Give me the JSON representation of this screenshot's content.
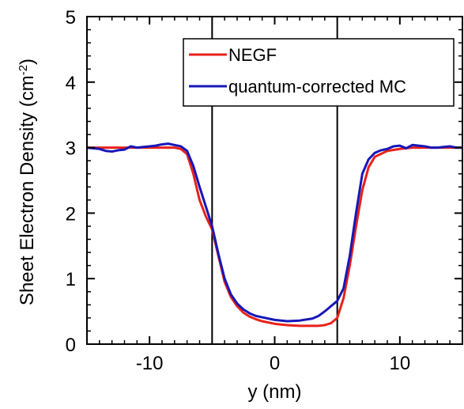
{
  "chart_data": {
    "type": "line",
    "xlabel": "y (nm)",
    "ylabel_main": "Sheet Electron Density (cm",
    "ylabel_sup": "-2",
    "ylabel_close": ")",
    "xlim": [
      -15,
      15
    ],
    "ylim": [
      0,
      5
    ],
    "x_ticks": [
      -10,
      0,
      10
    ],
    "x_tick_labels": [
      "-10",
      "0",
      "10"
    ],
    "y_ticks": [
      0,
      1,
      2,
      3,
      4,
      5
    ],
    "y_tick_labels": [
      "0",
      "1",
      "2",
      "3",
      "4",
      "5"
    ],
    "x_minor_step": 1,
    "y_minor_step": 0.2,
    "grid": false,
    "legend_position": "top-right",
    "vertical_lines": [
      -5,
      5
    ],
    "series": [
      {
        "name": "NEGF",
        "color": "#e8211b",
        "x": [
          -15,
          -12,
          -10,
          -9,
          -8,
          -7.5,
          -7,
          -6.5,
          -6,
          -5.5,
          -5,
          -4.5,
          -4,
          -3.5,
          -3,
          -2.5,
          -2,
          -1.5,
          -1,
          0,
          1,
          2,
          3,
          3.5,
          4,
          4.5,
          5,
          5.5,
          6,
          6.5,
          7,
          7.5,
          8,
          9,
          10,
          11,
          12,
          13,
          14,
          15
        ],
        "y": [
          3.0,
          3.0,
          3.0,
          3.0,
          3.0,
          2.98,
          2.9,
          2.6,
          2.2,
          1.95,
          1.75,
          1.35,
          0.95,
          0.72,
          0.58,
          0.48,
          0.42,
          0.38,
          0.35,
          0.31,
          0.29,
          0.28,
          0.28,
          0.28,
          0.29,
          0.32,
          0.4,
          0.7,
          1.2,
          1.8,
          2.35,
          2.7,
          2.86,
          2.95,
          2.98,
          3.0,
          3.0,
          3.0,
          3.0,
          3.0
        ]
      },
      {
        "name": "quantum-corrected MC",
        "color": "#1717b8",
        "x": [
          -15,
          -14,
          -13.5,
          -13,
          -12.5,
          -12,
          -11.5,
          -11,
          -10.5,
          -10,
          -9.5,
          -9,
          -8.5,
          -8,
          -7.5,
          -7,
          -6.5,
          -6,
          -5.5,
          -5,
          -4.5,
          -4,
          -3.5,
          -3,
          -2.5,
          -2,
          -1.5,
          -1,
          0,
          1,
          2,
          3,
          3.5,
          4,
          4.5,
          5,
          5.5,
          6,
          6.5,
          7,
          7.5,
          8,
          8.5,
          9,
          9.5,
          10,
          10.5,
          11,
          11.5,
          12,
          12.5,
          13,
          13.5,
          14,
          14.5,
          15
        ],
        "y": [
          3.0,
          2.98,
          2.95,
          2.94,
          2.96,
          2.97,
          3.02,
          3.0,
          3.01,
          3.02,
          3.03,
          3.05,
          3.06,
          3.04,
          3.02,
          2.95,
          2.72,
          2.4,
          2.1,
          1.8,
          1.38,
          1.0,
          0.76,
          0.62,
          0.53,
          0.47,
          0.43,
          0.41,
          0.37,
          0.35,
          0.36,
          0.39,
          0.43,
          0.5,
          0.58,
          0.66,
          0.85,
          1.35,
          2.0,
          2.6,
          2.82,
          2.92,
          2.96,
          2.98,
          3.02,
          3.03,
          2.99,
          3.04,
          3.03,
          3.02,
          3.0,
          3.0,
          3.01,
          3.02,
          3.0,
          3.0
        ]
      }
    ]
  }
}
